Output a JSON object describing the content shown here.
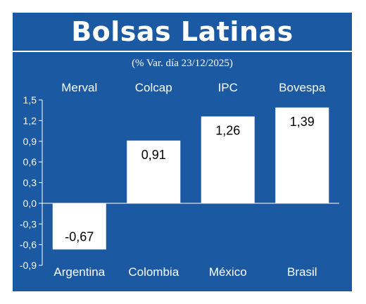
{
  "chart_data": {
    "type": "bar",
    "title": "Bolsas Latinas",
    "subtitle": "(% Var. día 23/12/2025)",
    "index_labels": [
      "Merval",
      "Colcap",
      "IPC",
      "Bovespa"
    ],
    "categories": [
      "Argentina",
      "Colombia",
      "México",
      "Brasil"
    ],
    "values": [
      -0.67,
      0.91,
      1.26,
      1.39
    ],
    "value_labels": [
      "-0,67",
      "0,91",
      "1,26",
      "1,39"
    ],
    "ylim": [
      -0.9,
      1.5
    ],
    "yticks": [
      1.5,
      1.2,
      0.9,
      0.6,
      0.3,
      0.0,
      -0.3,
      -0.6,
      -0.9
    ],
    "ytick_labels": [
      "1,5",
      "1,2",
      "0,9",
      "0,6",
      "0,3",
      "0,0",
      "-0,3",
      "-0,6",
      "-0,9"
    ],
    "grid": false,
    "xlabel": "",
    "ylabel": ""
  },
  "colors": {
    "background": "#1b5aa3",
    "bar": "#ffffff",
    "text": "#ffffff",
    "value_text": "#000000"
  }
}
